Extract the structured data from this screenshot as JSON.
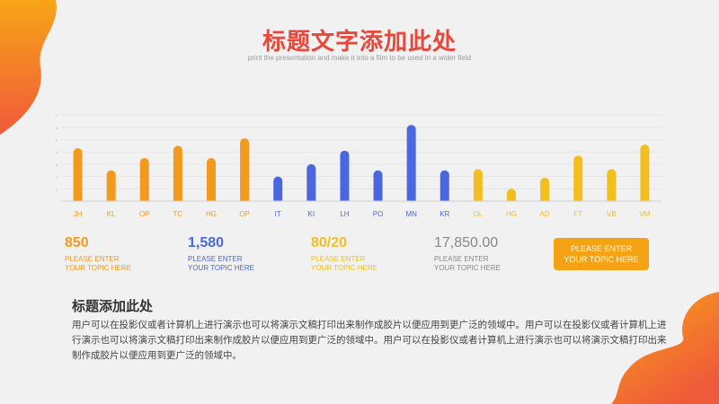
{
  "colors": {
    "title": "#e9473a",
    "orange": "#f39a1c",
    "blue": "#4a67e0",
    "yellow": "#f3bf1f",
    "gray": "#888888",
    "cta": "#f5a214",
    "blob_a": "#f8a417",
    "blob_b": "#ef5a3a"
  },
  "header": {
    "title": "标题文字添加此处",
    "subtitle": "print the presentation and make it into a film to be used in a wider field"
  },
  "chart_data": {
    "type": "bar",
    "categories": [
      "JH",
      "KL",
      "OP",
      "TC",
      "HG",
      "OP",
      "IT",
      "KI",
      "LH",
      "PO",
      "MN",
      "KR",
      "OL",
      "HG",
      "AD",
      "FT",
      "VB",
      "VM"
    ],
    "values": [
      4.3,
      2.5,
      3.5,
      4.5,
      3.5,
      5.1,
      2.0,
      3.0,
      4.1,
      2.5,
      6.2,
      2.5,
      2.6,
      1.0,
      1.9,
      3.7,
      2.6,
      4.6
    ],
    "series_colors": [
      "orange",
      "orange",
      "orange",
      "orange",
      "orange",
      "orange",
      "blue",
      "blue",
      "blue",
      "blue",
      "blue",
      "blue",
      "yellow",
      "yellow",
      "yellow",
      "yellow",
      "yellow",
      "yellow"
    ],
    "yticks": [
      1,
      2,
      3,
      4,
      5,
      6,
      7
    ],
    "ylim": [
      0,
      7.3
    ],
    "grid": true
  },
  "stats": [
    {
      "value": "850",
      "label": "PLEASE ENTER\nYOUR TOPIC HERE",
      "color": "orange"
    },
    {
      "value": "1,580",
      "label": "PLEASE ENTER\nYOUR TOPIC HERE",
      "color": "blue"
    },
    {
      "value": "80/20",
      "label": "PLEASE ENTER\nYOUR TOPIC HERE",
      "color": "yellow"
    },
    {
      "value": "17,850.00",
      "label": "PLEASE ENTER\nYOUR TOPIC HERE",
      "color": "gray"
    }
  ],
  "cta": {
    "label": "PLEASE ENTER\nYOUR TOPIC HERE"
  },
  "body": {
    "title": "标题添加此处",
    "text": "用户可以在投影仪或者计算机上进行演示也可以将演示文稿打印出来制作成胶片以便应用到更广泛的领域中。用户可以在投影仪或者计算机上进行演示也可以将演示文稿打印出来制作成胶片以便应用到更广泛的领域中。用户可以在投影仪或者计算机上进行演示也可以将演示文稿打印出来制作成胶片以便应用到更广泛的领域中。"
  }
}
